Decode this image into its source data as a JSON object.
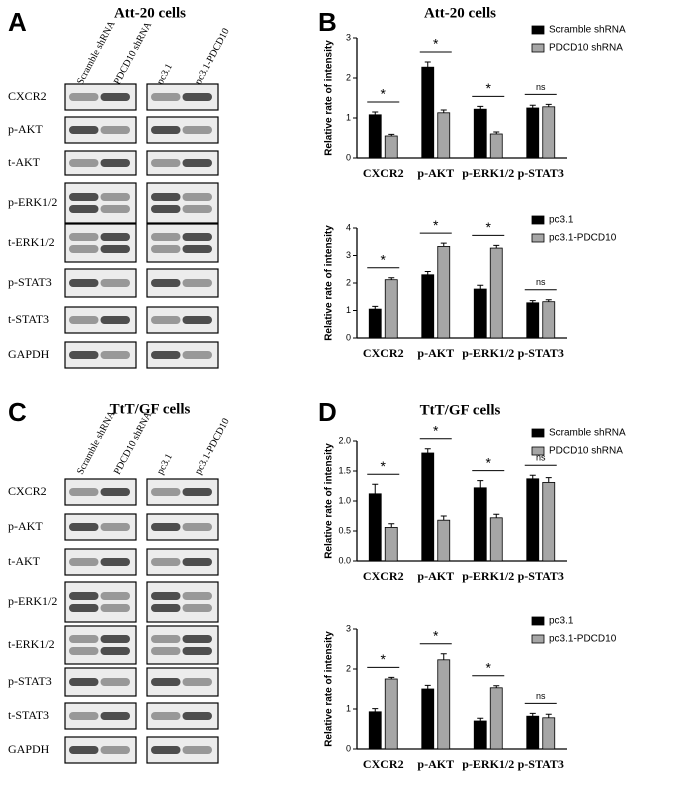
{
  "panel_letters": [
    "A",
    "B",
    "C",
    "D"
  ],
  "blots": [
    {
      "title": "Att-20 cells",
      "lanes": [
        "Scramble shRNA",
        "PDCD10 shRNA",
        "pc3.1",
        "pc3.1-PDCD10"
      ],
      "rows": [
        "CXCR2",
        "p-AKT",
        "t-AKT",
        "p-ERK1/2",
        "t-ERK1/2",
        "p-STAT3",
        "t-STAT3",
        "GAPDH"
      ]
    },
    {
      "title": "TtT/GF cells",
      "lanes": [
        "Scramble shRNA",
        "PDCD10 shRNA",
        "pc3.1",
        "pc3.1-PDCD10"
      ],
      "rows": [
        "CXCR2",
        "p-AKT",
        "t-AKT",
        "p-ERK1/2",
        "t-ERK1/2",
        "p-STAT3",
        "t-STAT3",
        "GAPDH"
      ]
    }
  ],
  "chart_data": [
    {
      "type": "bar",
      "title": "Att-20 cells",
      "y_label": "Relative rate of intensity",
      "categories": [
        "CXCR2",
        "p-AKT",
        "p-ERK1/2",
        "p-STAT3"
      ],
      "ylim": [
        0,
        3
      ],
      "yticks": [
        0,
        1,
        2,
        3
      ],
      "legend": "upper right",
      "series": [
        {
          "name": "Scramble shRNA",
          "color": "#000000",
          "values": [
            1.08,
            2.27,
            1.22,
            1.25
          ],
          "errors": [
            0.07,
            0.13,
            0.07,
            0.07
          ]
        },
        {
          "name": "PDCD10 shRNA",
          "color": "#a6a6a6",
          "values": [
            0.55,
            1.13,
            0.6,
            1.28
          ],
          "errors": [
            0.04,
            0.07,
            0.05,
            0.06
          ]
        }
      ],
      "annotations": [
        "*",
        "*",
        "*",
        "ns"
      ]
    },
    {
      "type": "bar",
      "y_label": "Relative rate of intensity",
      "categories": [
        "CXCR2",
        "p-AKT",
        "p-ERK1/2",
        "p-STAT3"
      ],
      "ylim": [
        0,
        4
      ],
      "yticks": [
        0,
        1,
        2,
        3,
        4
      ],
      "legend": "upper right",
      "series": [
        {
          "name": "pc3.1",
          "color": "#000000",
          "values": [
            1.05,
            2.3,
            1.78,
            1.28
          ],
          "errors": [
            0.1,
            0.12,
            0.14,
            0.08
          ]
        },
        {
          "name": "pc3.1-PDCD10",
          "color": "#a6a6a6",
          "values": [
            2.12,
            3.33,
            3.27,
            1.32
          ],
          "errors": [
            0.07,
            0.12,
            0.1,
            0.07
          ]
        }
      ],
      "annotations": [
        "*",
        "*",
        "*",
        "ns"
      ]
    },
    {
      "type": "bar",
      "title": "TtT/GF cells",
      "y_label": "Relative rate of intensity",
      "categories": [
        "CXCR2",
        "p-AKT",
        "p-ERK1/2",
        "p-STAT3"
      ],
      "ylim": [
        0,
        2
      ],
      "yticks": [
        {
          "value": 0,
          "label": "0.0"
        },
        0.5,
        {
          "value": 1,
          "label": "1.0"
        },
        1.5,
        {
          "value": 2,
          "label": "2.0"
        }
      ],
      "legend": "upper right",
      "series": [
        {
          "name": "Scramble shRNA",
          "color": "#000000",
          "values": [
            1.12,
            1.8,
            1.22,
            1.37
          ],
          "errors": [
            0.16,
            0.07,
            0.12,
            0.06
          ]
        },
        {
          "name": "PDCD10 shRNA",
          "color": "#a6a6a6",
          "values": [
            0.56,
            0.68,
            0.72,
            1.31
          ],
          "errors": [
            0.06,
            0.07,
            0.06,
            0.08
          ]
        }
      ],
      "annotations": [
        "*",
        "*",
        "*",
        "ns"
      ]
    },
    {
      "type": "bar",
      "y_label": "Relative rate of intensity",
      "categories": [
        "CXCR2",
        "p-AKT",
        "p-ERK1/2",
        "p-STAT3"
      ],
      "ylim": [
        0,
        3
      ],
      "yticks": [
        0,
        1,
        2,
        3
      ],
      "legend": "upper right",
      "series": [
        {
          "name": "pc3.1",
          "color": "#000000",
          "values": [
            0.93,
            1.5,
            0.7,
            0.82
          ],
          "errors": [
            0.08,
            0.09,
            0.07,
            0.07
          ]
        },
        {
          "name": "pc3.1-PDCD10",
          "color": "#a6a6a6",
          "values": [
            1.75,
            2.23,
            1.53,
            0.78
          ],
          "errors": [
            0.04,
            0.15,
            0.05,
            0.09
          ]
        }
      ],
      "annotations": [
        "*",
        "*",
        "*",
        "ns"
      ]
    }
  ]
}
